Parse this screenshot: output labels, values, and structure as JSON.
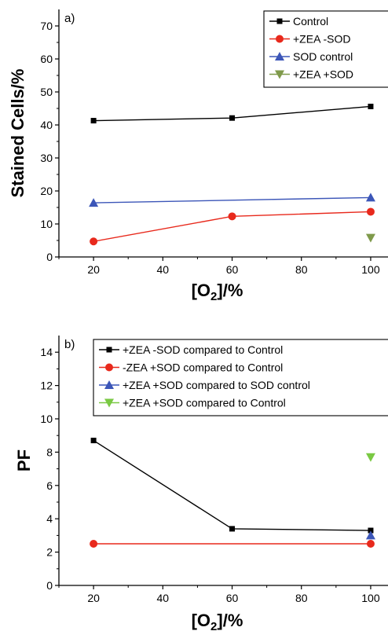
{
  "chart_data": [
    {
      "type": "line",
      "title": "",
      "panel_label": "a)",
      "ylabel": "Stained Cells/%",
      "xlabel_main": "[O",
      "xlabel_sub": "2",
      "xlabel_tail": "]/%",
      "xlim": [
        10,
        105
      ],
      "ylim": [
        0,
        75
      ],
      "xticks": [
        20,
        40,
        60,
        80,
        100
      ],
      "yticks": [
        0,
        10,
        20,
        30,
        40,
        50,
        60,
        70
      ],
      "legend_position": "top-right",
      "series": [
        {
          "name": "Control",
          "x": [
            20,
            60,
            100
          ],
          "y": [
            41.3,
            42.1,
            45.6
          ],
          "color": "#000000",
          "marker": "square"
        },
        {
          "name": "+ZEA -SOD",
          "x": [
            20,
            60,
            100
          ],
          "y": [
            4.7,
            12.3,
            13.7
          ],
          "color": "#e8291c",
          "marker": "circle"
        },
        {
          "name": "SOD control",
          "x": [
            20,
            100
          ],
          "y": [
            16.4,
            18.0
          ],
          "color": "#3c56b8",
          "marker": "triangle-up"
        },
        {
          "name": "+ZEA +SOD",
          "x": [
            100
          ],
          "y": [
            5.8
          ],
          "color": "#7f9a4b",
          "marker": "triangle-down"
        }
      ]
    },
    {
      "type": "line",
      "title": "",
      "panel_label": "b)",
      "ylabel": "PF",
      "xlabel_main": "[O",
      "xlabel_sub": "2",
      "xlabel_tail": "]/%",
      "xlim": [
        10,
        105
      ],
      "ylim": [
        0,
        15
      ],
      "xticks": [
        20,
        40,
        60,
        80,
        100
      ],
      "yticks": [
        0,
        2,
        4,
        6,
        8,
        10,
        12,
        14
      ],
      "legend_position": "top-right",
      "series": [
        {
          "name": "+ZEA -SOD compared to Control",
          "x": [
            20,
            60,
            100
          ],
          "y": [
            8.7,
            3.4,
            3.3
          ],
          "color": "#000000",
          "marker": "square"
        },
        {
          "name": "-ZEA +SOD compared to Control",
          "x": [
            20,
            100
          ],
          "y": [
            2.5,
            2.5
          ],
          "color": "#e8291c",
          "marker": "circle"
        },
        {
          "name": "+ZEA +SOD compared to SOD control",
          "x": [
            100
          ],
          "y": [
            3.0
          ],
          "color": "#3c56b8",
          "marker": "triangle-up"
        },
        {
          "name": "+ZEA +SOD compared to Control",
          "x": [
            100
          ],
          "y": [
            7.7
          ],
          "color": "#7ac943",
          "marker": "triangle-down"
        }
      ]
    }
  ]
}
